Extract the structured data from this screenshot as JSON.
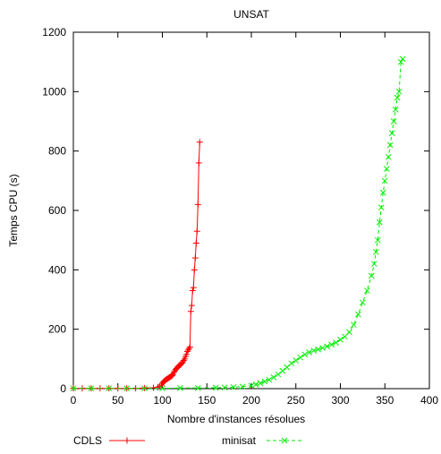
{
  "chart_data": {
    "type": "line",
    "title": "UNSAT",
    "xlabel": "Nombre d'instances résolues",
    "ylabel": "Temps CPU (s)",
    "xlim": [
      0,
      400
    ],
    "ylim": [
      0,
      1200
    ],
    "xticks": [
      0,
      50,
      100,
      150,
      200,
      250,
      300,
      350,
      400
    ],
    "yticks": [
      0,
      200,
      400,
      600,
      800,
      1000,
      1200
    ],
    "grid": false,
    "legend_position": "bottom",
    "series": [
      {
        "name": "CDLS",
        "color": "#ff0000",
        "marker": "plus",
        "line": "solid",
        "points": [
          [
            0,
            1
          ],
          [
            10,
            1
          ],
          [
            20,
            1
          ],
          [
            30,
            1
          ],
          [
            40,
            1
          ],
          [
            50,
            1
          ],
          [
            60,
            1
          ],
          [
            70,
            1
          ],
          [
            80,
            2
          ],
          [
            90,
            3
          ],
          [
            95,
            5
          ],
          [
            97,
            8
          ],
          [
            99,
            12
          ],
          [
            100,
            18
          ],
          [
            101,
            22
          ],
          [
            102,
            25
          ],
          [
            103,
            28
          ],
          [
            104,
            30
          ],
          [
            105,
            32
          ],
          [
            106,
            34
          ],
          [
            107,
            36
          ],
          [
            108,
            38
          ],
          [
            109,
            40
          ],
          [
            110,
            42
          ],
          [
            111,
            44
          ],
          [
            112,
            48
          ],
          [
            113,
            55
          ],
          [
            114,
            60
          ],
          [
            115,
            65
          ],
          [
            116,
            68
          ],
          [
            117,
            72
          ],
          [
            118,
            75
          ],
          [
            119,
            78
          ],
          [
            120,
            80
          ],
          [
            121,
            82
          ],
          [
            122,
            86
          ],
          [
            123,
            90
          ],
          [
            124,
            95
          ],
          [
            125,
            100
          ],
          [
            126,
            108
          ],
          [
            127,
            115
          ],
          [
            128,
            125
          ],
          [
            129,
            130
          ],
          [
            130,
            135
          ],
          [
            131,
            140
          ],
          [
            132,
            260
          ],
          [
            133,
            280
          ],
          [
            134,
            330
          ],
          [
            135,
            340
          ],
          [
            136,
            400
          ],
          [
            137,
            440
          ],
          [
            138,
            490
          ],
          [
            139,
            530
          ],
          [
            140,
            620
          ],
          [
            141,
            760
          ],
          [
            142,
            830
          ]
        ]
      },
      {
        "name": "minisat",
        "color": "#00ee00",
        "marker": "cross",
        "line": "dashed",
        "points": [
          [
            0,
            1
          ],
          [
            20,
            1
          ],
          [
            40,
            1
          ],
          [
            60,
            1
          ],
          [
            80,
            1
          ],
          [
            100,
            1
          ],
          [
            120,
            2
          ],
          [
            140,
            2
          ],
          [
            160,
            3
          ],
          [
            170,
            4
          ],
          [
            180,
            5
          ],
          [
            190,
            7
          ],
          [
            200,
            10
          ],
          [
            205,
            14
          ],
          [
            210,
            18
          ],
          [
            215,
            24
          ],
          [
            220,
            30
          ],
          [
            225,
            38
          ],
          [
            230,
            48
          ],
          [
            235,
            60
          ],
          [
            240,
            72
          ],
          [
            245,
            85
          ],
          [
            250,
            95
          ],
          [
            255,
            105
          ],
          [
            260,
            115
          ],
          [
            265,
            122
          ],
          [
            270,
            128
          ],
          [
            275,
            132
          ],
          [
            280,
            137
          ],
          [
            285,
            142
          ],
          [
            290,
            148
          ],
          [
            295,
            155
          ],
          [
            300,
            165
          ],
          [
            305,
            175
          ],
          [
            310,
            190
          ],
          [
            315,
            215
          ],
          [
            320,
            250
          ],
          [
            325,
            290
          ],
          [
            330,
            330
          ],
          [
            335,
            380
          ],
          [
            338,
            420
          ],
          [
            340,
            460
          ],
          [
            342,
            500
          ],
          [
            344,
            560
          ],
          [
            346,
            610
          ],
          [
            348,
            660
          ],
          [
            350,
            700
          ],
          [
            352,
            740
          ],
          [
            354,
            780
          ],
          [
            356,
            820
          ],
          [
            358,
            860
          ],
          [
            360,
            900
          ],
          [
            362,
            940
          ],
          [
            364,
            980
          ],
          [
            366,
            1000
          ],
          [
            368,
            1100
          ],
          [
            370,
            1110
          ]
        ]
      }
    ]
  }
}
